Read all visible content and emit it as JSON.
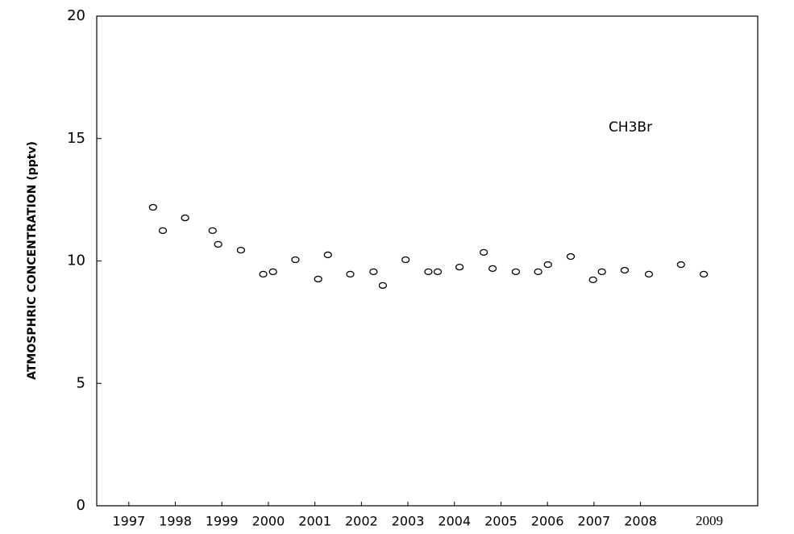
{
  "chart_data": {
    "type": "scatter",
    "y_label": "ATMOSPHRIC CONCENTRATION (pptv)",
    "annotations": [
      "CH3Br",
      "2009"
    ],
    "series": [
      {
        "name": "CH3Br",
        "color": "#000000",
        "x": [
          1997.52,
          1997.73,
          1998.21,
          1998.8,
          1998.92,
          1999.41,
          1999.89,
          2000.1,
          2000.58,
          2001.07,
          2001.28,
          2001.76,
          2002.26,
          2002.46,
          2002.95,
          2003.44,
          2003.64,
          2004.11,
          2004.63,
          2004.82,
          2005.32,
          2005.8,
          2006.01,
          2006.5,
          2006.98,
          2007.17,
          2007.66,
          2008.18,
          2008.87,
          2009.36
        ],
        "values": [
          12.19,
          11.24,
          11.76,
          11.24,
          10.68,
          10.44,
          9.46,
          9.56,
          10.05,
          9.26,
          10.25,
          9.46,
          9.56,
          9.0,
          10.05,
          9.56,
          9.56,
          9.75,
          10.35,
          9.69,
          9.56,
          9.56,
          9.85,
          10.18,
          9.23,
          9.56,
          9.62,
          9.46,
          9.85,
          9.46
        ]
      }
    ],
    "xlim": [
      1996.31,
      2010.52
    ],
    "xticks": [
      1997,
      1998,
      1999,
      2000,
      2001,
      2002,
      2003,
      2004,
      2005,
      2006,
      2007,
      2008
    ],
    "ylim": [
      0,
      20
    ],
    "yticks": [
      0,
      5,
      10,
      15,
      20
    ],
    "grid": false
  }
}
